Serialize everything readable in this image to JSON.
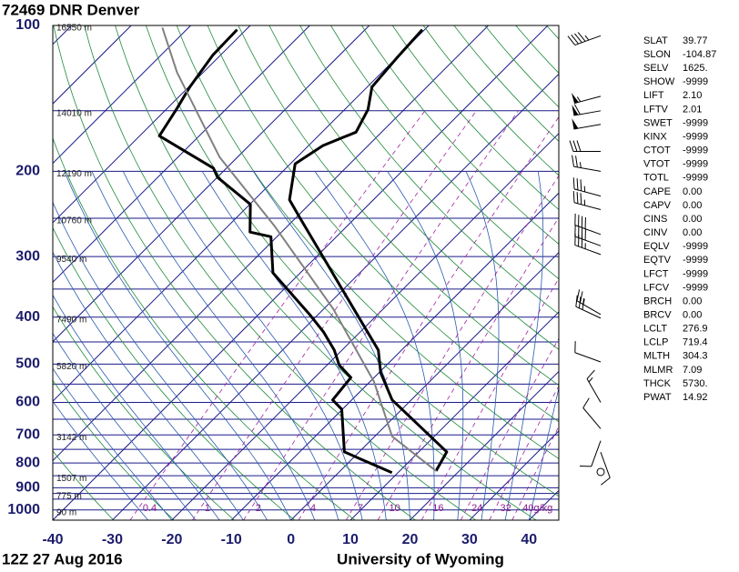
{
  "chart_data": {
    "type": "skewt",
    "title": "72469 DNR Denver",
    "date": "12Z 27 Aug 2016",
    "source": "University of Wyoming",
    "xlim": [
      -40,
      45
    ],
    "xticks": [
      -40,
      -30,
      -20,
      -10,
      0,
      10,
      20,
      30,
      40
    ],
    "ylim": [
      100,
      1050
    ],
    "yticks": [
      100,
      200,
      300,
      400,
      500,
      600,
      700,
      800,
      900,
      1000
    ],
    "isobars": [
      100,
      150,
      200,
      250,
      300,
      350,
      400,
      450,
      500,
      550,
      600,
      650,
      700,
      750,
      800,
      850,
      900,
      925,
      950,
      1000,
      1050
    ],
    "heights": [
      {
        "p": 100,
        "label": "16550 m"
      },
      {
        "p": 150,
        "label": "14010 m"
      },
      {
        "p": 200,
        "label": "12190 m"
      },
      {
        "p": 250,
        "label": "10760 m"
      },
      {
        "p": 300,
        "label": "9540 m"
      },
      {
        "p": 400,
        "label": "7490 m"
      },
      {
        "p": 500,
        "label": "5820 m"
      },
      {
        "p": 700,
        "label": "3142 m"
      },
      {
        "p": 850,
        "label": "1507 m"
      },
      {
        "p": 925,
        "label": "775 m"
      },
      {
        "p": 1000,
        "label": "90 m"
      }
    ],
    "mixing_ratios": [
      0.4,
      1,
      2,
      4,
      7,
      10,
      16,
      24,
      32,
      {
        "value": 40,
        "label": "40g/kg"
      }
    ],
    "profiles": [
      {
        "color": "#000000",
        "width": 3,
        "p": [
          831,
          759,
          593,
          521,
          468,
          394,
          324,
          250,
          229,
          193,
          177,
          166,
          149,
          134,
          117,
          102
        ],
        "t": [
          16.1,
          14.7,
          -3.2,
          -9.7,
          -13.9,
          -23.6,
          -34.6,
          -49.2,
          -54.1,
          -59.2,
          -57.6,
          -54.3,
          -56.1,
          -59.2,
          -59.9,
          -60.4
        ]
      },
      {
        "color": "#000000",
        "width": 3,
        "p": [
          838,
          785,
          759,
          620,
          593,
          533,
          503,
          468,
          429,
          394,
          324,
          273,
          267,
          234,
          206,
          197,
          169,
          149,
          134,
          115,
          102
        ],
        "t": [
          9.0,
          1.4,
          -2.5,
          -10.1,
          -13.2,
          -13.9,
          -17.9,
          -21.3,
          -26.2,
          -31.6,
          -44.6,
          -51.0,
          -55.3,
          -59.9,
          -69.9,
          -72.2,
          -86.7,
          -88.3,
          -89.8,
          -91.3,
          -91.5
        ]
      },
      {
        "color": "#808080",
        "width": 2,
        "p": [
          831,
          705,
          544,
          384,
          259,
          187,
          125,
          101
        ],
        "t": [
          16.1,
          2.9,
          -9.3,
          -28.5,
          -52.3,
          -73.0,
          -94.4,
          -104.4
        ]
      }
    ],
    "winds": [
      {
        "p": 105,
        "dir": 250,
        "spd": 45
      },
      {
        "p": 140,
        "dir": 255,
        "spd": 55
      },
      {
        "p": 150,
        "dir": 260,
        "spd": 60
      },
      {
        "p": 160,
        "dir": 260,
        "spd": 50
      },
      {
        "p": 182,
        "dir": 270,
        "spd": 30
      },
      {
        "p": 200,
        "dir": 280,
        "spd": 25
      },
      {
        "p": 225,
        "dir": 285,
        "spd": 35
      },
      {
        "p": 240,
        "dir": 285,
        "spd": 35
      },
      {
        "p": 270,
        "dir": 290,
        "spd": 40
      },
      {
        "p": 285,
        "dir": 290,
        "spd": 40
      },
      {
        "p": 297,
        "dir": 290,
        "spd": 35
      },
      {
        "p": 395,
        "dir": 300,
        "spd": 25
      },
      {
        "p": 402,
        "dir": 295,
        "spd": 30
      },
      {
        "p": 495,
        "dir": 290,
        "spd": 10
      },
      {
        "p": 600,
        "dir": 330,
        "spd": 15
      },
      {
        "p": 680,
        "dir": 320,
        "spd": 10
      },
      {
        "p": 720,
        "dir": 200,
        "spd": 10
      },
      {
        "p": 760,
        "dir": 160,
        "spd": 10
      },
      {
        "p": 835,
        "dir": 0,
        "spd": 0
      }
    ],
    "indices": [
      [
        "SLAT",
        "39.77"
      ],
      [
        "SLON",
        "-104.87"
      ],
      [
        "SELV",
        "1625."
      ],
      [
        "SHOW",
        "-9999"
      ],
      [
        "LIFT",
        "2.10"
      ],
      [
        "LFTV",
        "2.01"
      ],
      [
        "SWET",
        "-9999"
      ],
      [
        "KINX",
        "-9999"
      ],
      [
        "CTOT",
        "-9999"
      ],
      [
        "VTOT",
        "-9999"
      ],
      [
        "TOTL",
        "-9999"
      ],
      [
        "CAPE",
        "0.00"
      ],
      [
        "CAPV",
        "0.00"
      ],
      [
        "CINS",
        "0.00"
      ],
      [
        "CINV",
        "0.00"
      ],
      [
        "EQLV",
        "-9999"
      ],
      [
        "EQTV",
        "-9999"
      ],
      [
        "LFCT",
        "-9999"
      ],
      [
        "LFCV",
        "-9999"
      ],
      [
        "BRCH",
        "0.00"
      ],
      [
        "BRCV",
        "0.00"
      ],
      [
        "LCLT",
        "276.9"
      ],
      [
        "LCLP",
        "719.4"
      ],
      [
        "MLTH",
        "304.3"
      ],
      [
        "MLMR",
        "7.09"
      ],
      [
        "THCK",
        "5730."
      ],
      [
        "PWAT",
        "14.92"
      ]
    ]
  }
}
